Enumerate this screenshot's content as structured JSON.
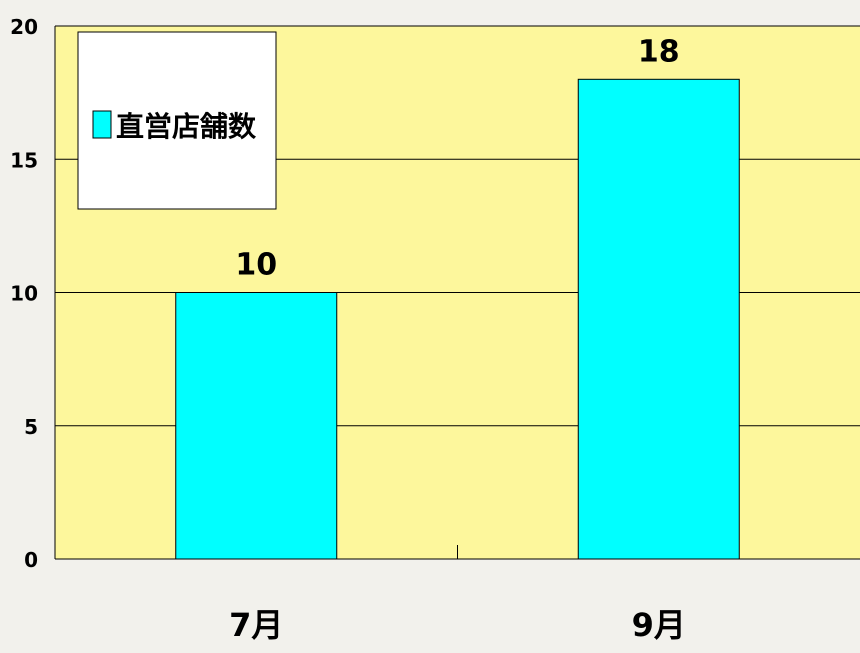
{
  "chart_data": {
    "type": "bar",
    "categories": [
      "7月",
      "9月"
    ],
    "series": [
      {
        "name": "直営店舗数",
        "values": [
          10,
          18
        ]
      }
    ],
    "data_labels": [
      "10",
      "18"
    ],
    "ylim": [
      0,
      20
    ],
    "yticks": [
      0,
      5,
      10,
      15,
      20
    ],
    "ytick_labels": [
      "0",
      "5",
      "10",
      "15",
      "20"
    ],
    "grid": true,
    "legend_position": "top-left",
    "colors": {
      "background": "#f2f1ec",
      "plot_area": "#fdf79c",
      "bar": "#00ffff",
      "gridline": "#000000",
      "legend_bg": "#ffffff"
    }
  }
}
